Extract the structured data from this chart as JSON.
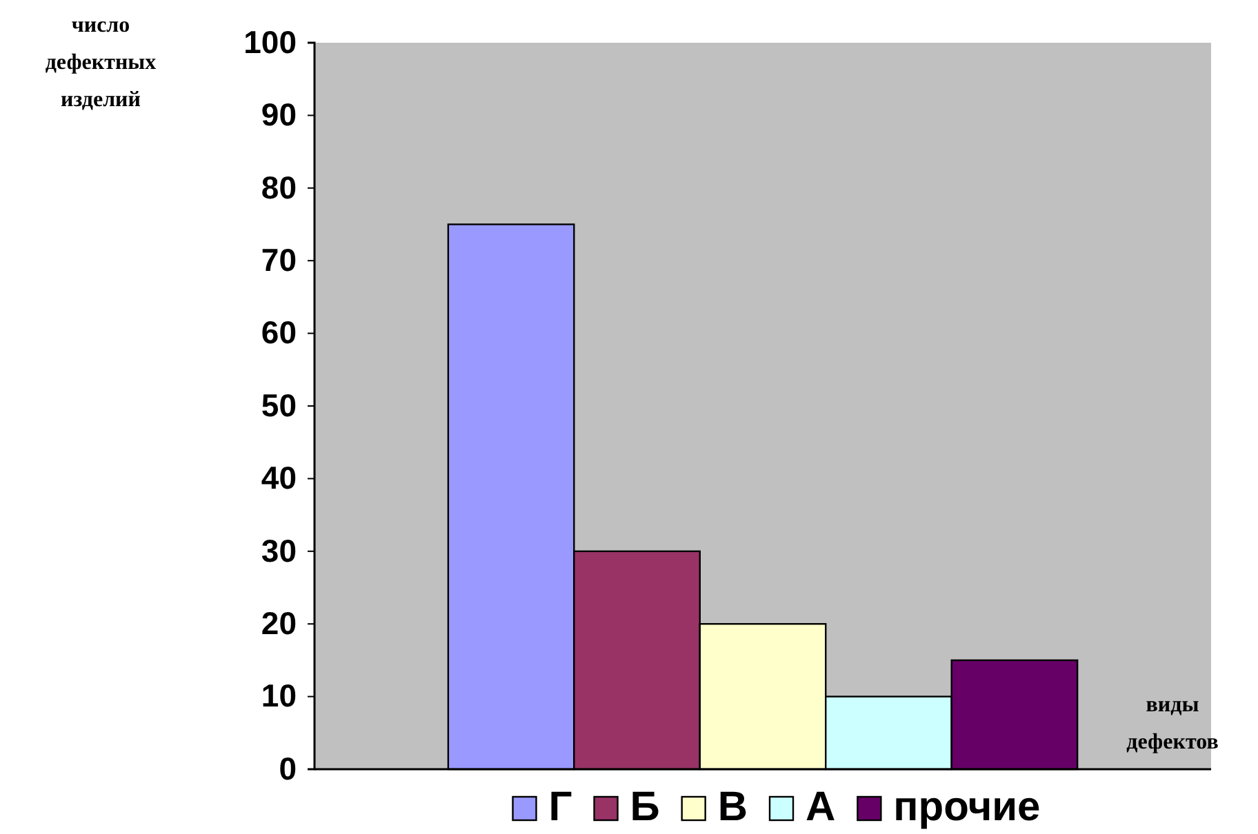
{
  "chart_data": {
    "type": "bar",
    "ylabel": "число дефектных изделий",
    "xlabel": "виды дефектов",
    "categories": [
      null
    ],
    "series": [
      {
        "name": "Г",
        "color": "#9999ff",
        "values": [
          75
        ]
      },
      {
        "name": "Б",
        "color": "#993366",
        "values": [
          30
        ]
      },
      {
        "name": "В",
        "color": "#ffffcc",
        "values": [
          20
        ]
      },
      {
        "name": "А",
        "color": "#ccffff",
        "values": [
          10
        ]
      },
      {
        "name": "прочие",
        "color": "#660066",
        "values": [
          15
        ]
      }
    ],
    "ylim": [
      0,
      100
    ],
    "yticks": [
      0,
      10,
      20,
      30,
      40,
      50,
      60,
      70,
      80,
      90,
      100
    ],
    "grid": false,
    "legend": "bottom"
  }
}
